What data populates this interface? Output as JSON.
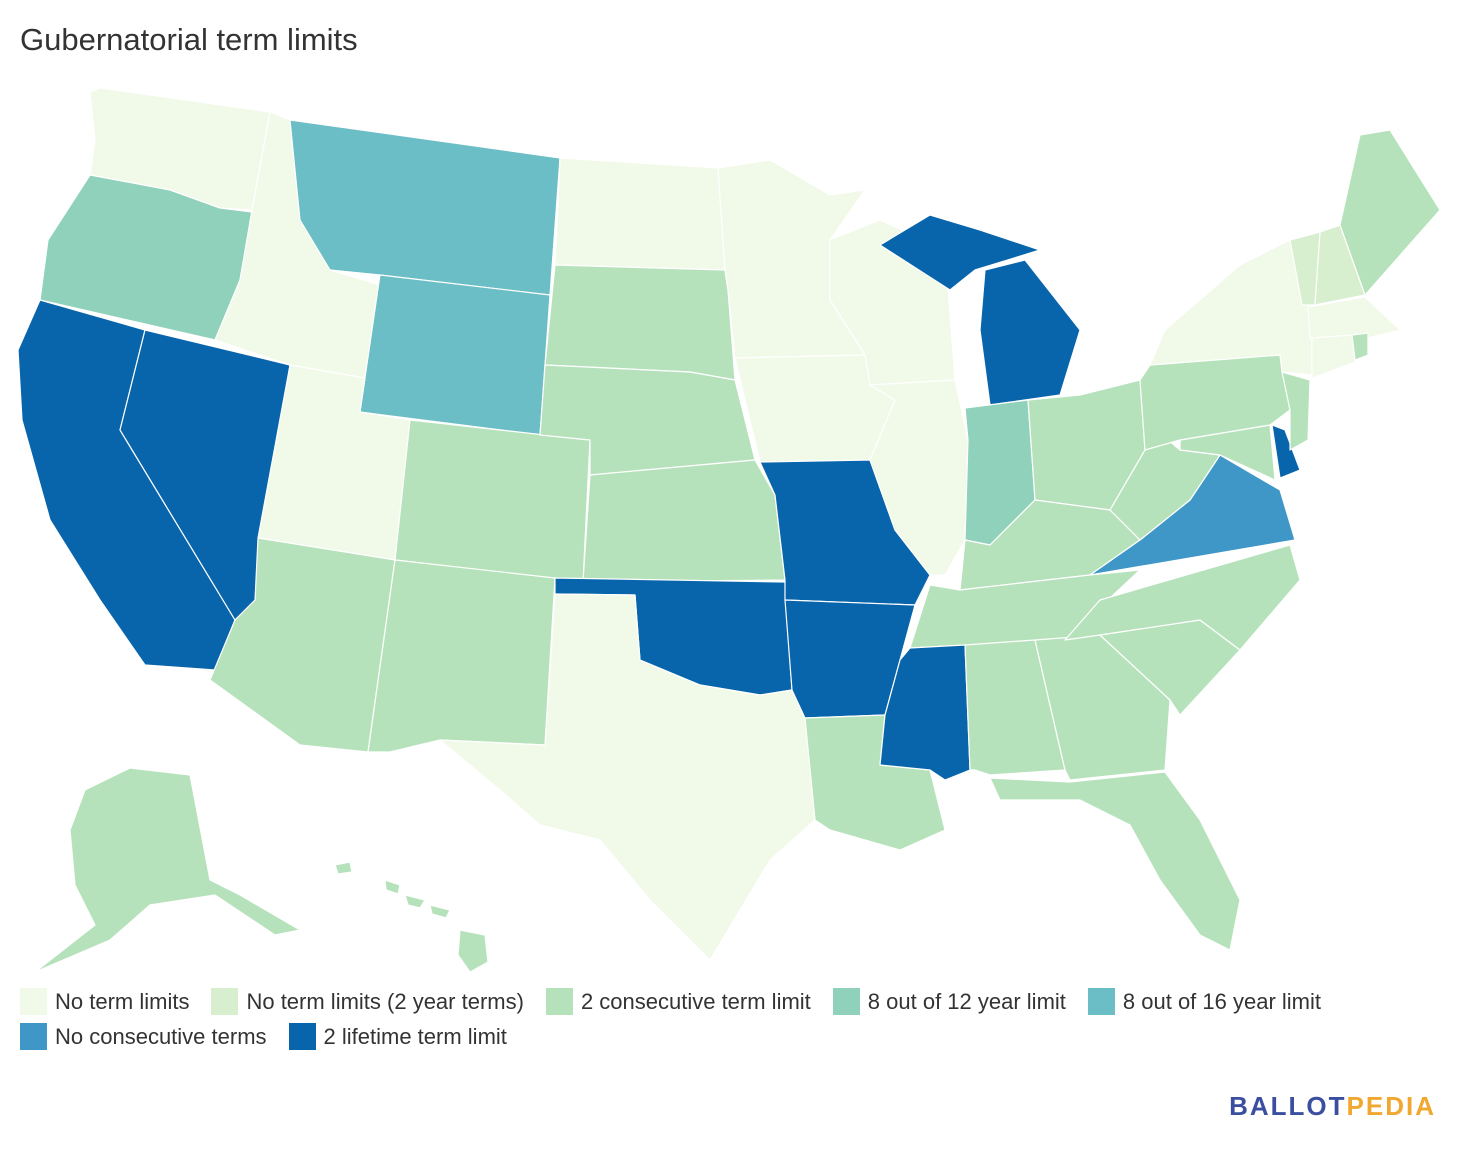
{
  "title": "Gubernatorial term limits",
  "legend": [
    {
      "key": "none",
      "label": "No term limits",
      "color": "#f1f9e8"
    },
    {
      "key": "none2",
      "label": "No term limits (2 year terms)",
      "color": "#d7efcf"
    },
    {
      "key": "cons2",
      "label": "2 consecutive term limit",
      "color": "#b6e2bb"
    },
    {
      "key": "of12",
      "label": "8 out of 12 year limit",
      "color": "#8fd1bb"
    },
    {
      "key": "of16",
      "label": "8 out of 16 year limit",
      "color": "#6bbec6"
    },
    {
      "key": "nocons",
      "label": "No consecutive terms",
      "color": "#3f97c7"
    },
    {
      "key": "life2",
      "label": "2 lifetime term limit",
      "color": "#0865ab"
    }
  ],
  "states": {
    "WA": "none",
    "OR": "of12",
    "CA": "life2",
    "NV": "life2",
    "ID": "none",
    "MT": "of16",
    "WY": "of16",
    "UT": "none",
    "AZ": "cons2",
    "CO": "cons2",
    "NM": "cons2",
    "ND": "none",
    "SD": "cons2",
    "NE": "cons2",
    "KS": "cons2",
    "OK": "life2",
    "TX": "none",
    "MN": "none",
    "IA": "none",
    "MO": "life2",
    "AR": "life2",
    "LA": "cons2",
    "WI": "none",
    "IL": "none",
    "MI": "life2",
    "IN": "of12",
    "OH": "cons2",
    "KY": "cons2",
    "TN": "cons2",
    "MS": "life2",
    "AL": "cons2",
    "GA": "cons2",
    "FL": "cons2",
    "SC": "cons2",
    "NC": "cons2",
    "VA": "nocons",
    "WV": "cons2",
    "PA": "cons2",
    "NY": "none",
    "VT": "none2",
    "NH": "none2",
    "ME": "cons2",
    "MA": "none",
    "RI": "cons2",
    "CT": "none",
    "NJ": "cons2",
    "DE": "life2",
    "MD": "cons2",
    "AK": "cons2",
    "HI": "cons2"
  },
  "logo": {
    "part1": "BALLOT",
    "part2": "PEDIA"
  }
}
